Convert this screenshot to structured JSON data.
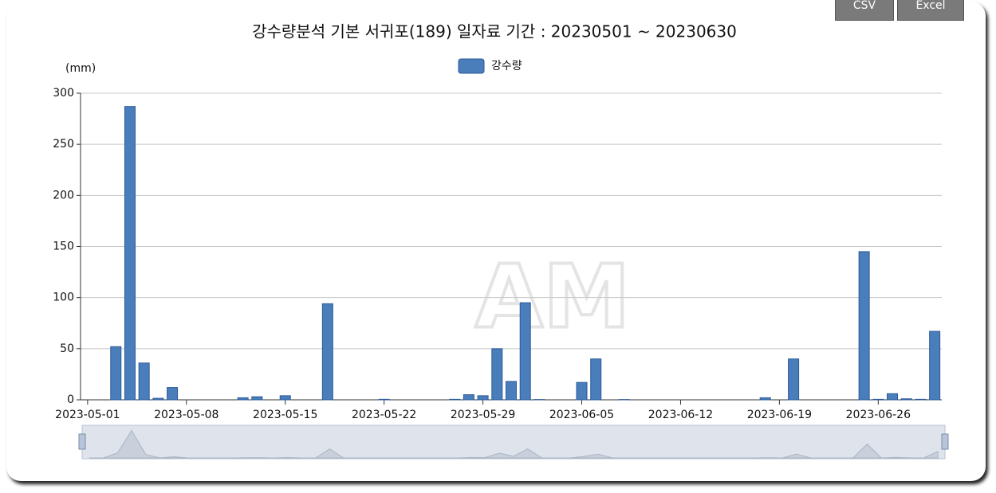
{
  "buttons": [
    "CSV",
    "Excel"
  ],
  "watermark": "AM",
  "chart_data": {
    "type": "bar",
    "title": "강수량분석 기본 서귀포(189) 일자료 기간 : 20230501 ~ 20230630",
    "y_label": "(mm)",
    "categories": [
      "2023-05-01",
      null,
      null,
      null,
      null,
      null,
      null,
      "2023-05-08",
      null,
      null,
      null,
      null,
      null,
      null,
      "2023-05-15",
      null,
      null,
      null,
      null,
      null,
      null,
      "2023-05-22",
      null,
      null,
      null,
      null,
      null,
      null,
      "2023-05-29",
      null,
      null,
      null,
      null,
      null,
      null,
      "2023-06-05",
      null,
      null,
      null,
      null,
      null,
      null,
      "2023-06-12",
      null,
      null,
      null,
      null,
      null,
      null,
      "2023-06-19",
      null,
      null,
      null,
      null,
      null,
      null,
      "2023-06-26",
      null,
      null,
      null,
      null
    ],
    "series": [
      {
        "name": "강수량",
        "color": "#4a7ebb",
        "values": [
          0,
          0,
          52,
          287,
          36,
          1.5,
          12,
          0,
          0,
          0,
          0,
          2,
          3,
          0,
          4,
          0,
          0,
          94,
          0,
          0,
          0,
          0.5,
          0,
          0,
          0,
          0,
          0.5,
          5,
          4,
          50,
          18,
          95,
          0.3,
          0,
          0,
          17,
          40,
          0,
          0.3,
          0,
          0,
          0,
          0,
          0,
          0,
          0,
          0,
          0,
          2,
          0,
          40,
          0,
          0,
          0,
          0,
          145,
          0.5,
          6,
          1,
          0.5,
          67
        ]
      }
    ],
    "ylim": [
      0,
      300
    ],
    "yticks": [
      0,
      50,
      100,
      150,
      200,
      250,
      300
    ],
    "grid": true
  }
}
